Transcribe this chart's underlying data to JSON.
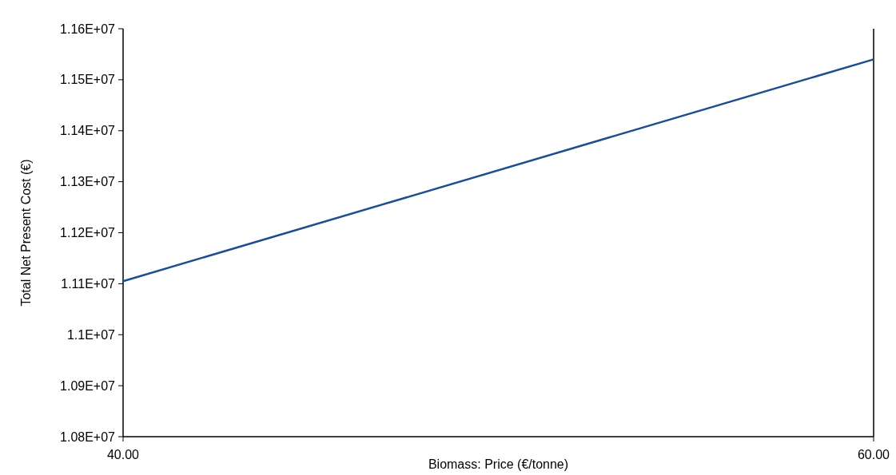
{
  "chart_data": {
    "type": "line",
    "xlabel": "Biomass: Price (€/tonne)",
    "ylabel": "Total Net Present Cost (€)",
    "x": [
      40,
      60
    ],
    "series": [
      {
        "color": "#1f4e8c",
        "values": [
          11105000,
          11540000
        ]
      }
    ],
    "xlim": [
      40,
      60
    ],
    "xticks": [
      {
        "value": 40,
        "label": "40.00"
      },
      {
        "value": 60,
        "label": "60.00"
      }
    ],
    "ylim": [
      10800000,
      11600000
    ],
    "yticks": [
      {
        "value": 10800000,
        "label": "1.08E+07"
      },
      {
        "value": 10900000,
        "label": "1.09E+07"
      },
      {
        "value": 11000000,
        "label": "1.1E+07"
      },
      {
        "value": 11100000,
        "label": "1.11E+07"
      },
      {
        "value": 11200000,
        "label": "1.12E+07"
      },
      {
        "value": 11300000,
        "label": "1.13E+07"
      },
      {
        "value": 11400000,
        "label": "1.14E+07"
      },
      {
        "value": 11500000,
        "label": "1.15E+07"
      },
      {
        "value": 11600000,
        "label": "1.16E+07"
      }
    ],
    "grid": false,
    "marker": "none",
    "line_style": "solid"
  }
}
